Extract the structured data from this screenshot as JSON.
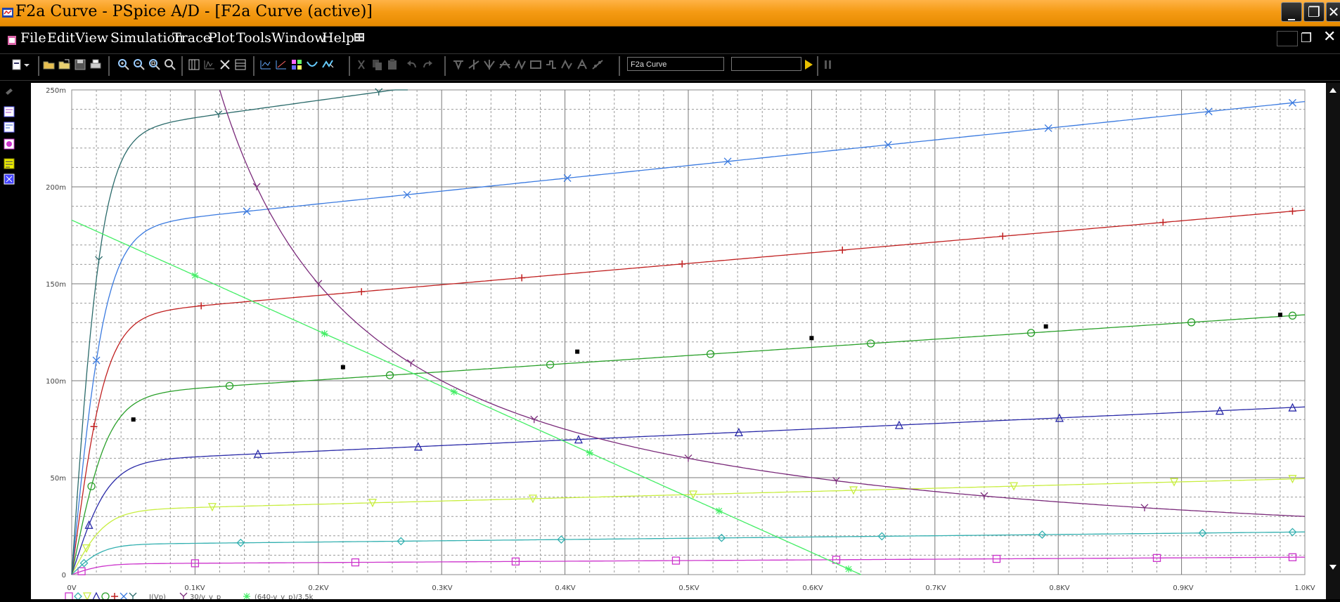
{
  "window": {
    "title": "F2a Curve - PSpice A/D  - [F2a Curve (active)]",
    "minimize_symbol": "_",
    "restore_symbol": "❐",
    "close_symbol": "✕"
  },
  "menu": {
    "items": [
      "File",
      "Edit",
      "View",
      "Simulation",
      "Trace",
      "Plot",
      "Tools",
      "Window",
      "Help"
    ]
  },
  "toolbar": {
    "profile_value": "F2a Curve",
    "simulation_field": "",
    "run_icon": "play-icon",
    "pause_icon": "pause-icon"
  },
  "plot": {
    "y_ticks": [
      "250m",
      "200m",
      "150m",
      "100m",
      "50m",
      "0"
    ],
    "x_ticks": [
      "0V",
      "0.1KV",
      "0.2KV",
      "0.3KV",
      "0.4KV",
      "0.5KV",
      "0.6KV",
      "0.7KV",
      "0.8KV",
      "0.9KV",
      "1.0KV"
    ],
    "legend_text": "I(Vp)",
    "legend_expr1": "30/v_v_p",
    "legend_expr2": "(640-v_v_p)/3.5k"
  },
  "chart_data": {
    "type": "line",
    "xlabel": "",
    "ylabel": "",
    "x_unit": "V",
    "xlim": [
      0,
      1000
    ],
    "ylim": [
      0,
      0.25
    ],
    "grid": true,
    "x_ticks": [
      "0V",
      "0.1KV",
      "0.2KV",
      "0.3KV",
      "0.4KV",
      "0.5KV",
      "0.6KV",
      "0.7KV",
      "0.8KV",
      "0.9KV",
      "1.0KV"
    ],
    "y_ticks": [
      "0",
      "50m",
      "100m",
      "150m",
      "200m",
      "250m"
    ],
    "series": [
      {
        "name": "I(Vp)",
        "color": "#cc33cc",
        "marker": "square",
        "knee": 25,
        "plateau": 0.0055,
        "slope": 3.5e-06
      },
      {
        "name": "I(Vp)",
        "color": "#33b0b0",
        "marker": "diamond",
        "knee": 25,
        "plateau": 0.0155,
        "slope": 6.5e-06
      },
      {
        "name": "I(Vp)",
        "color": "#c8ee40",
        "marker": "triangle-down",
        "knee": 28,
        "plateau": 0.033,
        "slope": 1.65e-05
      },
      {
        "name": "I(Vp)",
        "color": "#2a2aa8",
        "marker": "triangle",
        "knee": 30,
        "plateau": 0.058,
        "slope": 2.85e-05
      },
      {
        "name": "I(Vp)",
        "color": "#2aa02a",
        "marker": "circle",
        "knee": 30,
        "plateau": 0.092,
        "slope": 4.2e-05
      },
      {
        "name": "I(Vp)",
        "color": "#c02020",
        "marker": "plus",
        "knee": 28,
        "plateau": 0.133,
        "slope": 5.5e-05
      },
      {
        "name": "I(Vp)",
        "color": "#3a7ae0",
        "marker": "x",
        "knee": 28,
        "plateau": 0.178,
        "slope": 6.6e-05
      },
      {
        "name": "I(Vp)",
        "color": "#2a6a6a",
        "marker": "y",
        "knee": 25,
        "plateau": 0.227,
        "slope": 8.8e-05
      },
      {
        "name": "30/v_v_p",
        "color": "#7a2a7a",
        "type": "hyperbola",
        "numerator": 30
      },
      {
        "name": "(640-v_v_p)/3.5k",
        "color": "#44ee66",
        "type": "loadline",
        "v0": 640,
        "r": 3500
      },
      {
        "name": "",
        "color": "#000000",
        "type": "points",
        "points": [
          [
            50,
            0.08
          ],
          [
            220,
            0.107
          ],
          [
            410,
            0.115
          ],
          [
            600,
            0.122
          ],
          [
            790,
            0.128
          ],
          [
            980,
            0.134
          ]
        ]
      }
    ]
  }
}
